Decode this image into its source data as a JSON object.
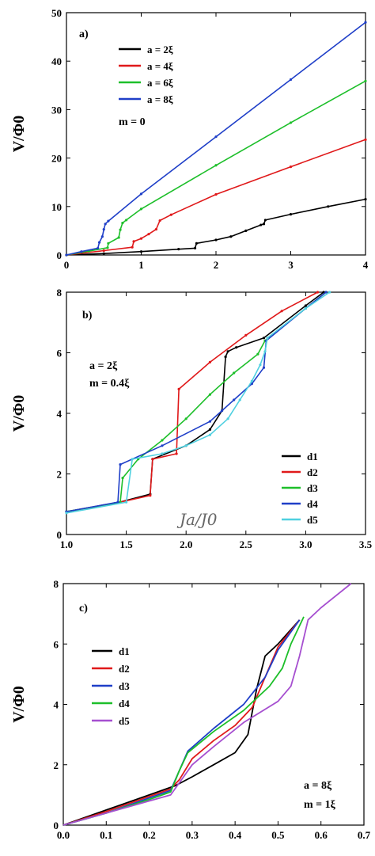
{
  "chart_data": [
    {
      "type": "line",
      "panel_label": "a)",
      "ylabel": "V/Φ0",
      "xlabel": "",
      "xlim": [
        0,
        4
      ],
      "ylim": [
        0,
        50
      ],
      "xticks": [
        "0",
        "1",
        "2",
        "3",
        "4"
      ],
      "yticks": [
        "0",
        "10",
        "20",
        "30",
        "40",
        "50"
      ],
      "legend_position": "top-left",
      "annotations": [
        "m = 0"
      ],
      "series": [
        {
          "name": "a = 2ξ",
          "color": "#000000",
          "marker": true,
          "x": [
            0,
            0.5,
            1.0,
            1.5,
            1.72,
            1.74,
            2.0,
            2.2,
            2.4,
            2.6,
            2.64,
            2.66,
            3.0,
            3.5,
            4.0
          ],
          "y": [
            0,
            0.3,
            0.7,
            1.2,
            1.4,
            2.4,
            3.1,
            3.8,
            5.0,
            6.2,
            6.4,
            7.2,
            8.4,
            10.0,
            11.5
          ]
        },
        {
          "name": "a = 4ξ",
          "color": "#e0191a",
          "marker": true,
          "x": [
            0,
            0.5,
            0.88,
            0.9,
            1.0,
            1.1,
            1.2,
            1.25,
            1.4,
            2.0,
            3.0,
            4.0
          ],
          "y": [
            0,
            0.9,
            1.6,
            2.8,
            3.4,
            4.3,
            5.3,
            7.1,
            8.3,
            12.5,
            18.2,
            23.8
          ]
        },
        {
          "name": "a = 6ξ",
          "color": "#1dbf2a",
          "marker": true,
          "x": [
            0,
            0.3,
            0.55,
            0.56,
            0.7,
            0.72,
            0.75,
            0.8,
            1.0,
            2.0,
            3.0,
            4.0
          ],
          "y": [
            0,
            0.8,
            1.5,
            2.4,
            3.6,
            5.2,
            6.6,
            7.2,
            9.5,
            18.5,
            27.3,
            35.9
          ]
        },
        {
          "name": "a = 8ξ",
          "color": "#1f3fc8",
          "marker": true,
          "x": [
            0,
            0.2,
            0.42,
            0.44,
            0.48,
            0.5,
            0.52,
            0.56,
            1.0,
            2.0,
            3.0,
            4.0
          ],
          "y": [
            0,
            0.7,
            1.4,
            2.6,
            3.8,
            5.3,
            6.4,
            7.0,
            12.6,
            24.4,
            36.2,
            48.0
          ]
        }
      ]
    },
    {
      "type": "line",
      "panel_label": "b)",
      "ylabel": "V/Φ0",
      "xlabel": "Ja/J0",
      "xlim": [
        1.0,
        3.5
      ],
      "ylim": [
        0,
        9
      ],
      "xticks": [
        "1.0",
        "1.5",
        "2.0",
        "2.5",
        "3.0",
        "3.5"
      ],
      "yticks": [
        "0",
        "2",
        "4",
        "6",
        "8"
      ],
      "legend_position": "right",
      "annotations": [
        "a = 2ξ",
        "m = 0.4ξ"
      ],
      "series": [
        {
          "name": "d1",
          "color": "#000000",
          "marker": true,
          "x": [
            1.0,
            1.4,
            1.7,
            1.72,
            2.0,
            2.2,
            2.3,
            2.33,
            2.35,
            2.42,
            2.65,
            3.0,
            3.15
          ],
          "y": [
            0.85,
            1.15,
            1.5,
            2.8,
            3.3,
            3.9,
            4.6,
            6.6,
            6.8,
            6.95,
            7.3,
            8.5,
            9.0
          ]
        },
        {
          "name": "d2",
          "color": "#e0191a",
          "marker": true,
          "x": [
            1.0,
            1.5,
            1.7,
            1.72,
            1.92,
            1.94,
            2.2,
            2.5,
            2.8,
            3.1
          ],
          "y": [
            0.85,
            1.25,
            1.45,
            2.8,
            3.0,
            5.4,
            6.4,
            7.4,
            8.3,
            9.0
          ]
        },
        {
          "name": "d3",
          "color": "#1dbf2a",
          "marker": true,
          "x": [
            1.0,
            1.45,
            1.47,
            1.6,
            1.8,
            2.0,
            2.2,
            2.4,
            2.6,
            2.66,
            3.0,
            3.17
          ],
          "y": [
            0.85,
            1.2,
            2.1,
            2.8,
            3.5,
            4.3,
            5.2,
            6.0,
            6.7,
            7.2,
            8.4,
            9.0
          ]
        },
        {
          "name": "d4",
          "color": "#1f3fc8",
          "marker": true,
          "x": [
            1.0,
            1.43,
            1.45,
            1.8,
            2.2,
            2.3,
            2.4,
            2.55,
            2.65,
            2.67,
            3.0,
            3.17
          ],
          "y": [
            0.85,
            1.2,
            2.6,
            3.3,
            4.2,
            4.6,
            5.0,
            5.6,
            6.2,
            7.2,
            8.4,
            9.0
          ]
        },
        {
          "name": "d5",
          "color": "#4fd0e0",
          "marker": true,
          "x": [
            1.0,
            1.5,
            1.55,
            1.8,
            2.0,
            2.2,
            2.35,
            2.45,
            2.55,
            2.62,
            2.66,
            2.68,
            3.0,
            3.2
          ],
          "y": [
            0.8,
            1.2,
            2.8,
            3.0,
            3.3,
            3.7,
            4.3,
            5.0,
            5.7,
            6.3,
            6.8,
            7.3,
            8.4,
            9.0
          ]
        }
      ]
    },
    {
      "type": "line",
      "panel_label": "c)",
      "ylabel": "V/Φ0",
      "xlabel": "",
      "xlim": [
        0.0,
        0.7
      ],
      "ylim": [
        0,
        8
      ],
      "xticks": [
        "0.0",
        "0.1",
        "0.2",
        "0.3",
        "0.4",
        "0.5",
        "0.6",
        "0.7"
      ],
      "yticks": [
        "0",
        "2",
        "4",
        "6",
        "8"
      ],
      "legend_position": "left",
      "annotations": [
        "a = 8ξ",
        "m = 1ξ"
      ],
      "series": [
        {
          "name": "d1",
          "color": "#000000",
          "marker": false,
          "x": [
            0,
            0.1,
            0.2,
            0.26,
            0.3,
            0.35,
            0.4,
            0.43,
            0.45,
            0.47,
            0.5,
            0.55
          ],
          "y": [
            0,
            0.5,
            1.0,
            1.3,
            1.6,
            2.0,
            2.4,
            3.0,
            4.5,
            5.6,
            6.0,
            6.8
          ]
        },
        {
          "name": "d2",
          "color": "#e0191a",
          "marker": false,
          "x": [
            0,
            0.1,
            0.2,
            0.25,
            0.27,
            0.3,
            0.35,
            0.4,
            0.44,
            0.47,
            0.5,
            0.55
          ],
          "y": [
            0,
            0.45,
            0.95,
            1.2,
            1.5,
            2.2,
            2.8,
            3.3,
            3.9,
            4.9,
            5.9,
            6.8
          ]
        },
        {
          "name": "d3",
          "color": "#1f3fc8",
          "marker": false,
          "x": [
            0,
            0.1,
            0.2,
            0.25,
            0.27,
            0.29,
            0.35,
            0.42,
            0.47,
            0.5,
            0.55
          ],
          "y": [
            0,
            0.4,
            0.9,
            1.15,
            1.8,
            2.45,
            3.2,
            4.0,
            4.9,
            5.8,
            6.8
          ]
        },
        {
          "name": "d4",
          "color": "#1dbf2a",
          "marker": false,
          "x": [
            0,
            0.1,
            0.2,
            0.25,
            0.27,
            0.29,
            0.35,
            0.42,
            0.48,
            0.51,
            0.53,
            0.56
          ],
          "y": [
            0,
            0.4,
            0.85,
            1.1,
            1.8,
            2.4,
            3.1,
            3.8,
            4.6,
            5.2,
            6.0,
            6.9
          ]
        },
        {
          "name": "d5",
          "color": "#a64fd0",
          "marker": false,
          "x": [
            0,
            0.1,
            0.2,
            0.25,
            0.27,
            0.3,
            0.35,
            0.42,
            0.5,
            0.53,
            0.55,
            0.57,
            0.6,
            0.67
          ],
          "y": [
            0,
            0.4,
            0.8,
            1.0,
            1.4,
            2.0,
            2.6,
            3.4,
            4.1,
            4.6,
            5.6,
            6.8,
            7.2,
            8.0
          ]
        }
      ]
    }
  ]
}
